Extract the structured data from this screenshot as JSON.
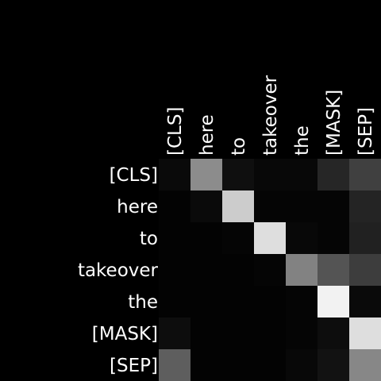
{
  "chart_data": {
    "type": "heatmap",
    "x_labels": [
      "[CLS]",
      "here",
      "to",
      "takeover",
      "the",
      "[MASK]",
      "[SEP]"
    ],
    "y_labels": [
      "[CLS]",
      "here",
      "to",
      "takeover",
      "the",
      "[MASK]",
      "[SEP]"
    ],
    "colormap": "grayscale (black = 0, white = 1)",
    "values": [
      [
        0.04,
        0.55,
        0.06,
        0.03,
        0.03,
        0.15,
        0.25
      ],
      [
        0.01,
        0.04,
        0.8,
        0.02,
        0.02,
        0.02,
        0.14
      ],
      [
        0.01,
        0.01,
        0.02,
        0.87,
        0.03,
        0.02,
        0.13
      ],
      [
        0.01,
        0.01,
        0.01,
        0.02,
        0.51,
        0.33,
        0.24
      ],
      [
        0.01,
        0.01,
        0.01,
        0.01,
        0.02,
        0.95,
        0.04
      ],
      [
        0.05,
        0.01,
        0.01,
        0.01,
        0.02,
        0.05,
        0.87
      ],
      [
        0.37,
        0.01,
        0.01,
        0.01,
        0.03,
        0.07,
        0.53
      ]
    ]
  }
}
